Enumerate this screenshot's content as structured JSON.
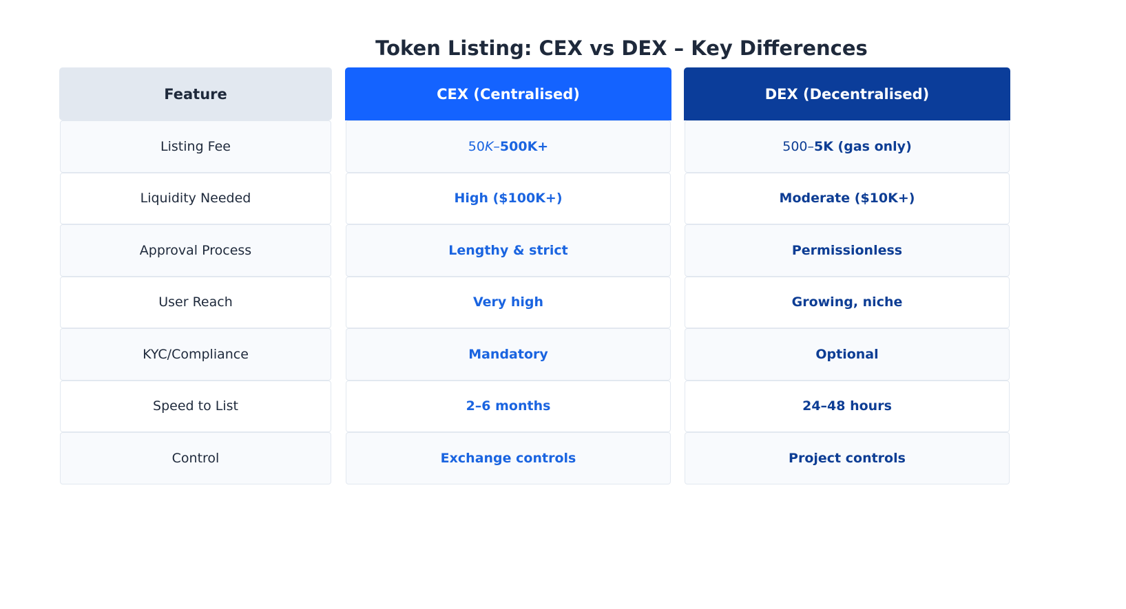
{
  "title": "Token Listing: CEX vs DEX – Key Differences",
  "colors": {
    "title": "#1e293b",
    "feature_header_bg": "#e2e8f0",
    "cex_header_bg": "#1463ff",
    "dex_header_bg": "#0b3d9a",
    "cex_text": "#1a64e0",
    "dex_text": "#0d3d94",
    "row_alt_bg": "#f8fafd",
    "row_bg": "#ffffff",
    "border": "#e2e8f0"
  },
  "columns": {
    "feature": "Feature",
    "cex": "CEX (Centralised)",
    "dex": "DEX (Decentralised)"
  },
  "rows": [
    {
      "feature": "Listing Fee",
      "cex": "50K–500K+",
      "cex_parts": {
        "a": "50",
        "b": "K",
        "c": "–",
        "d": "500K+"
      },
      "dex": "500–5K (gas only)",
      "dex_parts": {
        "a": "500–",
        "b": "5K (gas only)"
      }
    },
    {
      "feature": "Liquidity Needed",
      "cex": "High ($100K+)",
      "dex": "Moderate ($10K+)"
    },
    {
      "feature": "Approval Process",
      "cex": "Lengthy & strict",
      "dex": "Permissionless"
    },
    {
      "feature": "User Reach",
      "cex": "Very high",
      "dex": "Growing, niche"
    },
    {
      "feature": "KYC/Compliance",
      "cex": "Mandatory",
      "dex": "Optional"
    },
    {
      "feature": "Speed to List",
      "cex": "2–6 months",
      "dex": "24–48 hours"
    },
    {
      "feature": "Control",
      "cex": "Exchange controls",
      "dex": "Project controls"
    }
  ],
  "chart_data": {
    "type": "table",
    "title": "Token Listing: CEX vs DEX – Key Differences",
    "columns": [
      "Feature",
      "CEX (Centralised)",
      "DEX (Decentralised)"
    ],
    "rows": [
      [
        "Listing Fee",
        "50K–500K+",
        "500–5K (gas only)"
      ],
      [
        "Liquidity Needed",
        "High ($100K+)",
        "Moderate ($10K+)"
      ],
      [
        "Approval Process",
        "Lengthy & strict",
        "Permissionless"
      ],
      [
        "User Reach",
        "Very high",
        "Growing, niche"
      ],
      [
        "KYC/Compliance",
        "Mandatory",
        "Optional"
      ],
      [
        "Speed to List",
        "2–6 months",
        "24–48 hours"
      ],
      [
        "Control",
        "Exchange controls",
        "Project controls"
      ]
    ],
    "grid": false,
    "legend": null
  }
}
